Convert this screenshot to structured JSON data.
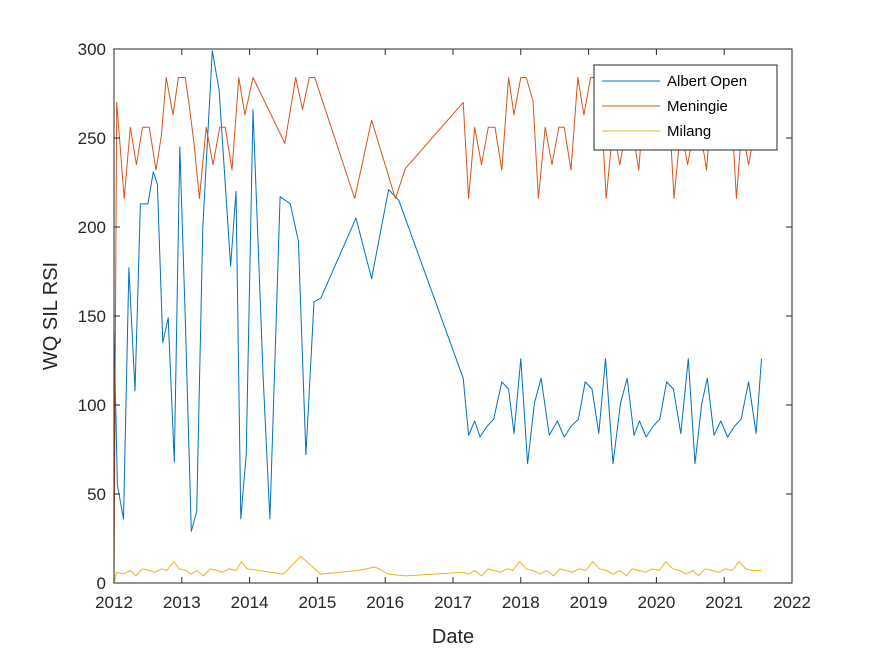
{
  "chart_data": {
    "type": "line",
    "title": "",
    "xlabel": "Date",
    "ylabel": "WQ SIL RSI",
    "xlim": [
      2012,
      2022
    ],
    "ylim": [
      0,
      300
    ],
    "xticks": [
      2012,
      2013,
      2014,
      2015,
      2016,
      2017,
      2018,
      2019,
      2020,
      2021,
      2022
    ],
    "yticks": [
      0,
      50,
      100,
      150,
      200,
      250,
      300
    ],
    "xtick_labels": [
      "2012",
      "2013",
      "2014",
      "2015",
      "2016",
      "2017",
      "2018",
      "2019",
      "2020",
      "2021",
      "2022"
    ],
    "ytick_labels": [
      "0",
      "50",
      "100",
      "150",
      "200",
      "250",
      "300"
    ],
    "grid": false,
    "legend": {
      "position": "top-right"
    },
    "series": [
      {
        "name": "Albert Open",
        "color": "#0072BD",
        "x": [
          2012.0,
          2012.05,
          2012.14,
          2012.22,
          2012.31,
          2012.39,
          2012.5,
          2012.58,
          2012.64,
          2012.72,
          2012.8,
          2012.89,
          2012.97,
          2013.05,
          2013.14,
          2013.22,
          2013.31,
          2013.45,
          2013.55,
          2013.72,
          2013.8,
          2013.87,
          2013.95,
          2014.05,
          2014.2,
          2014.3,
          2014.45,
          2014.6,
          2014.72,
          2014.83,
          2014.95,
          2015.05,
          2015.57,
          2015.8,
          2016.05,
          2016.2,
          2017.15,
          2017.23,
          2017.32,
          2017.4,
          2017.5,
          2017.6,
          2017.72,
          2017.82,
          2017.9,
          2018.0,
          2018.1,
          2018.2,
          2018.3,
          2018.42,
          2018.54,
          2018.64,
          2018.74,
          2018.85,
          2018.95,
          2019.05,
          2019.15,
          2019.25,
          2019.36,
          2019.47,
          2019.57,
          2019.67,
          2019.75,
          2019.85,
          2019.95,
          2020.05,
          2020.15,
          2020.25,
          2020.36,
          2020.47,
          2020.57,
          2020.67,
          2020.75,
          2020.85,
          2020.95,
          2021.05,
          2021.15,
          2021.25,
          2021.36,
          2021.47,
          2021.55
        ],
        "values": [
          143,
          55,
          36,
          177,
          108,
          213,
          213,
          231,
          224,
          135,
          149,
          68,
          245,
          150,
          29,
          40,
          200,
          299,
          277,
          178,
          220,
          36,
          72,
          266,
          115,
          36,
          217,
          213,
          192,
          72,
          158,
          160,
          205,
          171,
          221,
          215,
          115,
          83,
          91,
          82,
          88,
          92,
          113,
          109,
          84,
          126,
          67,
          101,
          115,
          83,
          91,
          82,
          88,
          92,
          113,
          109,
          84,
          126,
          67,
          101,
          115,
          83,
          91,
          82,
          88,
          92,
          113,
          109,
          84,
          126,
          67,
          101,
          115,
          83,
          91,
          82,
          88,
          92,
          113,
          84,
          126
        ]
      },
      {
        "name": "Meningie",
        "color": "#D95319",
        "x": [
          2012.0,
          2012.04,
          2012.15,
          2012.24,
          2012.33,
          2012.42,
          2012.52,
          2012.62,
          2012.7,
          2012.77,
          2012.87,
          2012.95,
          2013.05,
          2013.1,
          2013.18,
          2013.26,
          2013.36,
          2013.46,
          2013.56,
          2013.64,
          2013.74,
          2013.84,
          2013.93,
          2014.05,
          2014.52,
          2014.68,
          2014.78,
          2014.88,
          2014.96,
          2015.55,
          2015.8,
          2016.15,
          2016.3,
          2017.15,
          2017.23,
          2017.32,
          2017.42,
          2017.52,
          2017.62,
          2017.72,
          2017.82,
          2017.9,
          2018.0,
          2018.08,
          2018.18,
          2018.26,
          2018.36,
          2018.46,
          2018.56,
          2018.64,
          2018.74,
          2018.84,
          2018.93,
          2019.03,
          2019.1,
          2019.18,
          2019.26,
          2019.36,
          2019.46,
          2019.56,
          2019.64,
          2019.74,
          2019.84,
          2019.93,
          2020.03,
          2020.1,
          2020.18,
          2020.26,
          2020.36,
          2020.46,
          2020.56,
          2020.64,
          2020.74,
          2020.84,
          2020.93,
          2021.03,
          2021.1,
          2021.18,
          2021.26,
          2021.36,
          2021.46,
          2021.55
        ],
        "values": [
          0,
          270,
          216,
          256,
          235,
          256,
          256,
          232,
          252,
          284,
          263,
          284,
          284,
          271,
          247,
          216,
          256,
          235,
          256,
          256,
          232,
          284,
          263,
          284,
          247,
          284,
          266,
          284,
          284,
          216,
          260,
          216,
          233,
          270,
          216,
          256,
          235,
          256,
          256,
          232,
          284,
          263,
          284,
          284,
          271,
          216,
          256,
          235,
          256,
          256,
          232,
          284,
          263,
          284,
          284,
          271,
          216,
          256,
          235,
          256,
          256,
          232,
          284,
          263,
          284,
          284,
          271,
          216,
          256,
          235,
          256,
          256,
          232,
          284,
          263,
          284,
          271,
          216,
          256,
          235,
          256,
          247
        ]
      },
      {
        "name": "Milang",
        "color": "#EDB120",
        "x": [
          2012.0,
          2012.04,
          2012.14,
          2012.24,
          2012.32,
          2012.42,
          2012.52,
          2012.6,
          2012.7,
          2012.78,
          2012.88,
          2012.96,
          2013.06,
          2013.14,
          2013.22,
          2013.32,
          2013.42,
          2013.52,
          2013.6,
          2013.7,
          2013.8,
          2013.88,
          2013.96,
          2014.5,
          2014.75,
          2015.05,
          2015.6,
          2015.85,
          2016.05,
          2016.3,
          2017.15,
          2017.23,
          2017.32,
          2017.42,
          2017.52,
          2017.6,
          2017.7,
          2017.8,
          2017.88,
          2017.98,
          2018.08,
          2018.18,
          2018.28,
          2018.38,
          2018.48,
          2018.58,
          2018.66,
          2018.76,
          2018.86,
          2018.96,
          2019.06,
          2019.16,
          2019.26,
          2019.36,
          2019.46,
          2019.56,
          2019.64,
          2019.74,
          2019.84,
          2019.94,
          2020.04,
          2020.14,
          2020.24,
          2020.34,
          2020.44,
          2020.54,
          2020.62,
          2020.72,
          2020.82,
          2020.92,
          2021.02,
          2021.12,
          2021.22,
          2021.32,
          2021.42,
          2021.55
        ],
        "values": [
          0,
          6,
          5,
          7,
          4,
          8,
          7,
          6,
          8,
          7,
          12,
          8,
          7,
          5,
          7,
          4,
          8,
          7,
          6,
          8,
          7,
          12,
          8,
          5,
          15,
          5,
          7,
          9,
          5,
          4,
          6,
          5,
          7,
          4,
          8,
          7,
          6,
          8,
          7,
          12,
          8,
          7,
          5,
          7,
          4,
          8,
          7,
          6,
          8,
          7,
          12,
          8,
          7,
          5,
          7,
          4,
          8,
          7,
          6,
          8,
          7,
          12,
          8,
          7,
          5,
          7,
          4,
          8,
          7,
          6,
          8,
          7,
          12,
          8,
          7,
          7
        ]
      }
    ]
  }
}
